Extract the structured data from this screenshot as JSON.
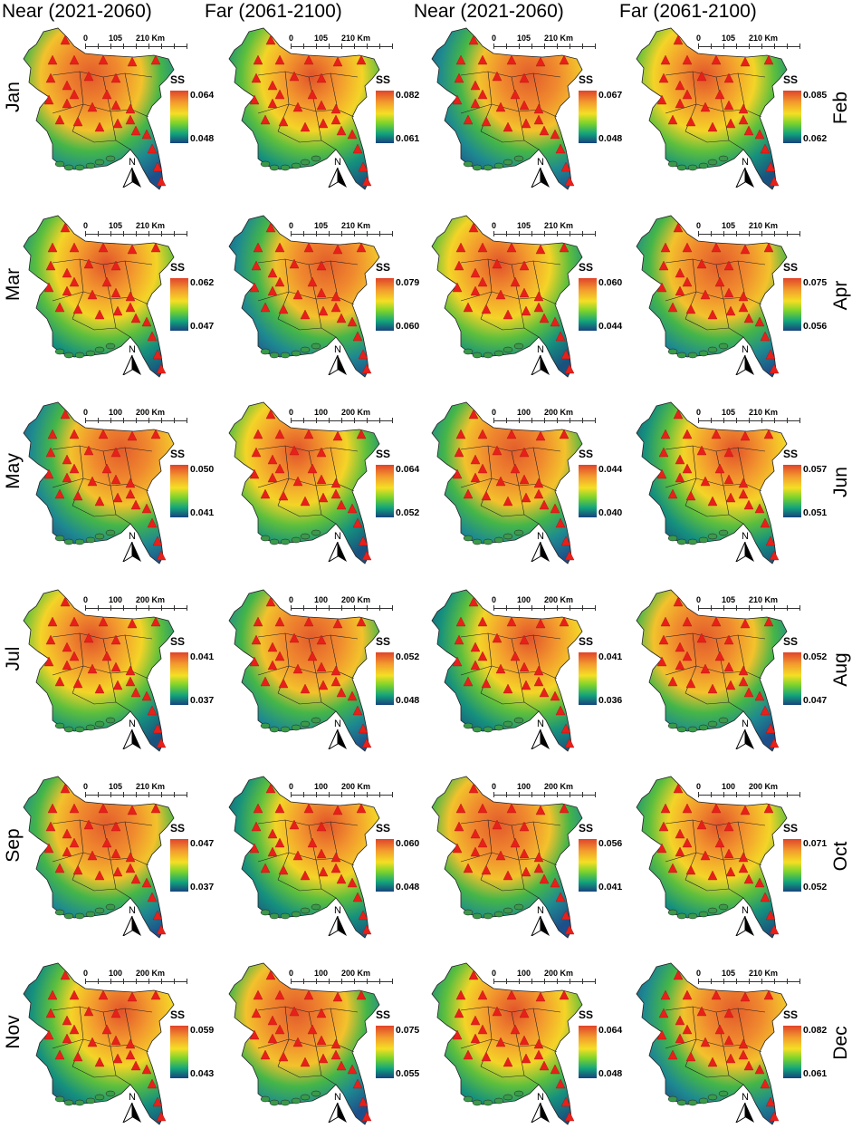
{
  "headers": [
    "Near (2021-2060)",
    "Far (2061-2100)",
    "Near (2021-2060)",
    "Far (2061-2100)"
  ],
  "legend_title": "SS",
  "north_label": "N",
  "rows": [
    {
      "left": "Jan",
      "right": "Feb",
      "scales": [
        [
          "0",
          "105",
          "210 Km"
        ],
        [
          "0",
          "105",
          "210 Km"
        ],
        [
          "0",
          "105",
          "210 Km"
        ],
        [
          "0",
          "105",
          "210 Km"
        ]
      ],
      "ranges": [
        [
          "0.064",
          "0.048"
        ],
        [
          "0.082",
          "0.061"
        ],
        [
          "0.067",
          "0.048"
        ],
        [
          "0.085",
          "0.062"
        ]
      ]
    },
    {
      "left": "Mar",
      "right": "Apr",
      "scales": [
        [
          "0",
          "105",
          "210 Km"
        ],
        [
          "0",
          "105",
          "210 Km"
        ],
        [
          "0",
          "105",
          "210 Km"
        ],
        [
          "0",
          "105",
          "210 Km"
        ]
      ],
      "ranges": [
        [
          "0.062",
          "0.047"
        ],
        [
          "0.079",
          "0.060"
        ],
        [
          "0.060",
          "0.044"
        ],
        [
          "0.075",
          "0.056"
        ]
      ]
    },
    {
      "left": "May",
      "right": "Jun",
      "scales": [
        [
          "0",
          "100",
          "200 Km"
        ],
        [
          "0",
          "100",
          "200 Km"
        ],
        [
          "0",
          "100",
          "200 Km"
        ],
        [
          "0",
          "105",
          "210 Km"
        ]
      ],
      "ranges": [
        [
          "0.050",
          "0.041"
        ],
        [
          "0.064",
          "0.052"
        ],
        [
          "0.044",
          "0.040"
        ],
        [
          "0.057",
          "0.051"
        ]
      ]
    },
    {
      "left": "Jul",
      "right": "Aug",
      "scales": [
        [
          "0",
          "100",
          "200 Km"
        ],
        [
          "0",
          "100",
          "200 Km"
        ],
        [
          "0",
          "100",
          "200 Km"
        ],
        [
          "0",
          "105",
          "210 Km"
        ]
      ],
      "ranges": [
        [
          "0.041",
          "0.037"
        ],
        [
          "0.052",
          "0.048"
        ],
        [
          "0.041",
          "0.036"
        ],
        [
          "0.052",
          "0.047"
        ]
      ]
    },
    {
      "left": "Sep",
      "right": "Oct",
      "scales": [
        [
          "0",
          "105",
          "210 Km"
        ],
        [
          "0",
          "100",
          "200 Km"
        ],
        [
          "0",
          "100",
          "200 Km"
        ],
        [
          "0",
          "100",
          "200 Km"
        ]
      ],
      "ranges": [
        [
          "0.047",
          "0.037"
        ],
        [
          "0.060",
          "0.048"
        ],
        [
          "0.056",
          "0.041"
        ],
        [
          "0.071",
          "0.052"
        ]
      ]
    },
    {
      "left": "Nov",
      "right": "Dec",
      "scales": [
        [
          "0",
          "100",
          "200 Km"
        ],
        [
          "0",
          "100",
          "200 Km"
        ],
        [
          "0",
          "100",
          "200 Km"
        ],
        [
          "0",
          "105",
          "210 Km"
        ]
      ],
      "ranges": [
        [
          "0.059",
          "0.043"
        ],
        [
          "0.075",
          "0.055"
        ],
        [
          "0.064",
          "0.048"
        ],
        [
          "0.082",
          "0.061"
        ]
      ]
    }
  ]
}
